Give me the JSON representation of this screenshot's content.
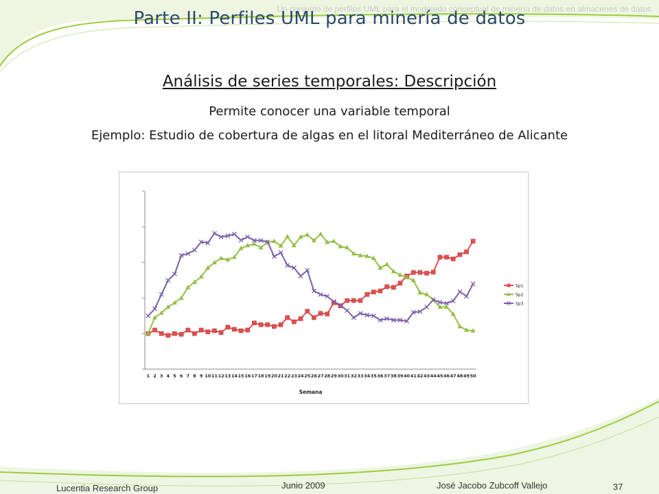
{
  "header": {
    "caption": "Un conjunto de perfiles UML para el modelado conceptual de minería de datos en almacenes de datos.",
    "title": "Parte II: Perfiles UML para minería de datos"
  },
  "content": {
    "heading": "Análisis de series temporales: Descripción",
    "line1": "Permite conocer una variable temporal",
    "line2": "Ejemplo: Estudio de cobertura de algas en el litoral Mediterráneo de Alicante"
  },
  "footer": {
    "group": "Lucentia Research Group",
    "date": "Junio 2009",
    "author": "José Jacobo Zubcoff Vallejo",
    "page": "37"
  },
  "colors": {
    "title": "#2a4a6a",
    "decor_green": "#9ccc3c",
    "sp1": "#e05050",
    "sp2": "#96be46",
    "sp3": "#7b5ea8"
  },
  "chart_data": {
    "type": "line",
    "title": "",
    "xlabel": "Semana",
    "ylabel": "",
    "ylim": [
      0,
      5
    ],
    "grid": false,
    "legend": "right",
    "x": [
      1,
      2,
      3,
      4,
      5,
      6,
      7,
      8,
      9,
      10,
      11,
      12,
      13,
      14,
      15,
      16,
      17,
      18,
      19,
      20,
      21,
      22,
      23,
      24,
      25,
      26,
      27,
      28,
      29,
      30,
      31,
      32,
      33,
      34,
      35,
      36,
      37,
      38,
      39,
      40,
      41,
      42,
      43,
      44,
      45,
      46,
      47,
      48,
      49,
      50
    ],
    "series": [
      {
        "name": "Sp1",
        "color": "#e05050",
        "marker": "square",
        "values": [
          1.0,
          1.1,
          1.0,
          0.95,
          1.0,
          0.98,
          1.1,
          1.0,
          1.1,
          1.05,
          1.08,
          1.03,
          1.18,
          1.12,
          1.08,
          1.1,
          1.3,
          1.25,
          1.25,
          1.2,
          1.25,
          1.45,
          1.33,
          1.42,
          1.63,
          1.45,
          1.57,
          1.55,
          1.87,
          1.78,
          1.93,
          1.93,
          1.93,
          2.1,
          2.17,
          2.2,
          2.32,
          2.3,
          2.42,
          2.62,
          2.72,
          2.72,
          2.7,
          2.73,
          3.15,
          3.15,
          3.1,
          3.22,
          3.3,
          3.6
        ]
      },
      {
        "name": "Sp2",
        "color": "#96be46",
        "marker": "triangle",
        "values": [
          1.0,
          1.45,
          1.58,
          1.75,
          1.87,
          2.0,
          2.3,
          2.45,
          2.6,
          2.85,
          3.0,
          3.12,
          3.08,
          3.15,
          3.4,
          3.48,
          3.52,
          3.42,
          3.57,
          3.6,
          3.47,
          3.73,
          3.48,
          3.72,
          3.78,
          3.62,
          3.8,
          3.57,
          3.6,
          3.45,
          3.42,
          3.25,
          3.2,
          3.18,
          3.12,
          2.85,
          2.95,
          2.75,
          2.65,
          2.58,
          2.5,
          2.15,
          2.1,
          1.95,
          1.75,
          1.75,
          1.55,
          1.2,
          1.1,
          1.08
        ]
      },
      {
        "name": "Sp3",
        "color": "#7b5ea8",
        "marker": "x",
        "values": [
          1.5,
          1.7,
          2.1,
          2.5,
          2.68,
          3.2,
          3.25,
          3.35,
          3.58,
          3.55,
          3.82,
          3.72,
          3.75,
          3.8,
          3.63,
          3.72,
          3.62,
          3.62,
          3.58,
          3.17,
          3.28,
          2.92,
          2.85,
          2.62,
          2.78,
          2.2,
          2.1,
          2.05,
          1.9,
          1.8,
          1.65,
          1.45,
          1.57,
          1.52,
          1.5,
          1.38,
          1.42,
          1.38,
          1.38,
          1.35,
          1.6,
          1.62,
          1.75,
          1.95,
          1.88,
          1.85,
          1.92,
          2.18,
          2.05,
          2.4
        ]
      }
    ]
  }
}
